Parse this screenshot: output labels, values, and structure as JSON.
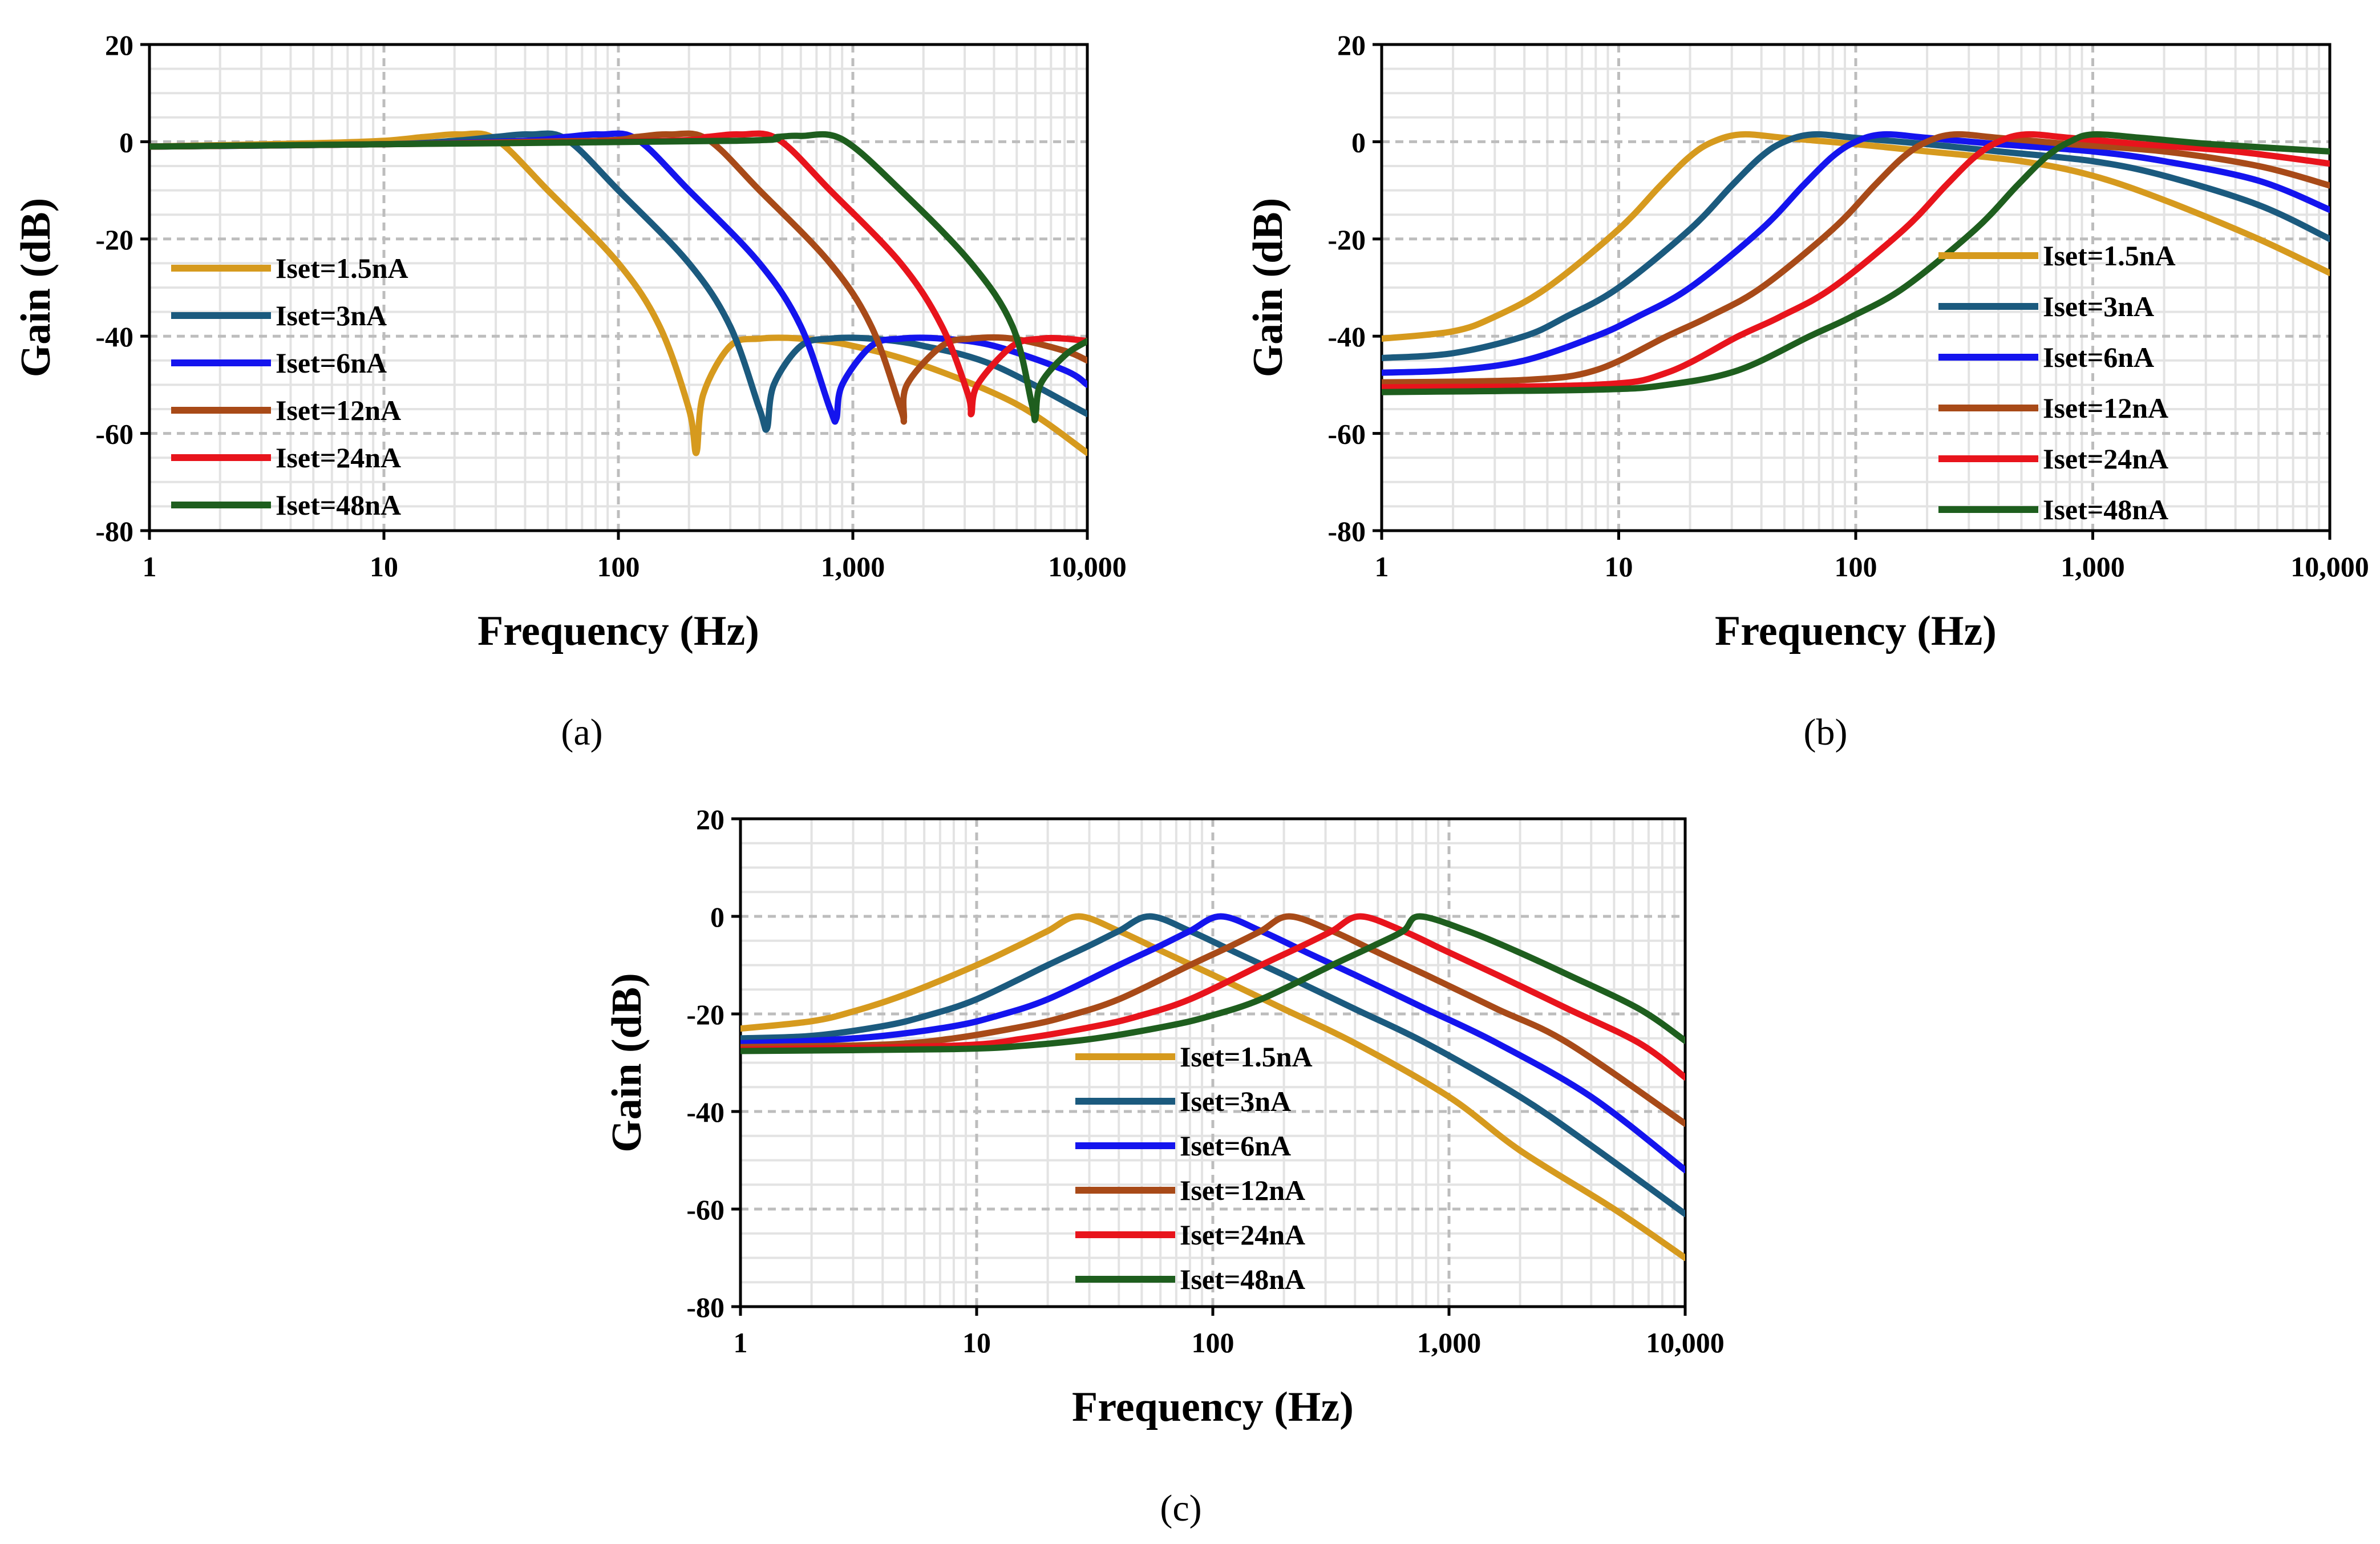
{
  "chart_data": [
    {
      "id": "a",
      "type": "line",
      "panel_label": "(a)",
      "xlabel": "Frequency (Hz)",
      "ylabel": "Gain (dB)",
      "xscale": "log",
      "xlim": [
        1,
        10000
      ],
      "ylim": [
        -80,
        20
      ],
      "xticks": [
        1,
        10,
        100,
        1000,
        10000
      ],
      "xtick_labels": [
        "1",
        "10",
        "100",
        "1,000",
        "10,000"
      ],
      "yticks": [
        -80,
        -60,
        -40,
        -20,
        0,
        20
      ],
      "ytick_labels": [
        "-80",
        "-60",
        "-40",
        "-20",
        "0",
        "20"
      ],
      "grid": true,
      "legend_position": "bottom-left",
      "series": [
        {
          "name": "Iset=1.5nA",
          "color": "#D69A1E",
          "x": [
            1,
            5,
            10,
            15,
            21,
            30,
            50,
            100,
            150,
            200,
            215,
            230,
            300,
            400,
            600,
            1000,
            2000,
            5000,
            10000
          ],
          "y": [
            -1,
            -0.3,
            0.2,
            1,
            1.5,
            0.5,
            -10,
            -25,
            -38,
            -55,
            -64,
            -52,
            -42,
            -40.5,
            -40.5,
            -42,
            -46,
            -54,
            -64
          ]
        },
        {
          "name": "Iset=3nA",
          "color": "#1B5A7E",
          "x": [
            1,
            10,
            20,
            30,
            42,
            60,
            100,
            200,
            300,
            400,
            430,
            460,
            600,
            800,
            1200,
            2000,
            4000,
            10000
          ],
          "y": [
            -1,
            -0.5,
            0.2,
            1,
            1.5,
            0.5,
            -10,
            -25,
            -38,
            -55,
            -59,
            -50,
            -42,
            -40.5,
            -40.5,
            -42,
            -46,
            -56
          ]
        },
        {
          "name": "Iset=6nA",
          "color": "#1414EE",
          "x": [
            1,
            10,
            40,
            60,
            84,
            120,
            200,
            400,
            600,
            800,
            850,
            900,
            1200,
            1600,
            2400,
            4000,
            8000,
            10000
          ],
          "y": [
            -1,
            -0.5,
            0.2,
            1,
            1.5,
            0.5,
            -10,
            -25,
            -38,
            -55,
            -57,
            -50,
            -42,
            -40.5,
            -40.5,
            -42,
            -47,
            -50
          ]
        },
        {
          "name": "Iset=12nA",
          "color": "#A84A18",
          "x": [
            1,
            10,
            80,
            120,
            165,
            240,
            400,
            800,
            1200,
            1600,
            1650,
            1700,
            2400,
            3200,
            4800,
            8000,
            10000
          ],
          "y": [
            -1,
            -0.5,
            0.2,
            1,
            1.5,
            0.5,
            -10,
            -25,
            -38,
            -55,
            -57,
            -50,
            -42,
            -40.5,
            -40.5,
            -43,
            -45
          ]
        },
        {
          "name": "Iset=24nA",
          "color": "#E8141C",
          "x": [
            1,
            10,
            160,
            240,
            330,
            480,
            800,
            1600,
            2400,
            3100,
            3200,
            3400,
            4800,
            6400,
            8000,
            10000
          ],
          "y": [
            -1,
            -0.5,
            0.2,
            1,
            1.5,
            0.5,
            -10,
            -25,
            -38,
            -52,
            -56,
            -50,
            -42,
            -40.5,
            -40.5,
            -41
          ]
        },
        {
          "name": "Iset=48nA",
          "color": "#1E5E1E",
          "x": [
            1,
            10,
            320,
            480,
            600,
            900,
            1600,
            3200,
            4800,
            5800,
            6000,
            6300,
            8000,
            10000
          ],
          "y": [
            -1,
            -0.5,
            0.2,
            1,
            1.2,
            0.5,
            -10,
            -25,
            -38,
            -54,
            -57,
            -50,
            -44,
            -41
          ]
        }
      ]
    },
    {
      "id": "b",
      "type": "line",
      "panel_label": "(b)",
      "xlabel": "Frequency (Hz)",
      "ylabel": "Gain (dB)",
      "xscale": "log",
      "xlim": [
        1,
        10000
      ],
      "ylim": [
        -80,
        20
      ],
      "xticks": [
        1,
        10,
        100,
        1000,
        10000
      ],
      "xtick_labels": [
        "1",
        "10",
        "100",
        "1,000",
        "10,000"
      ],
      "yticks": [
        -80,
        -60,
        -40,
        -20,
        0,
        20
      ],
      "ytick_labels": [
        "-80",
        "-60",
        "-40",
        "-20",
        "0",
        "20"
      ],
      "grid": true,
      "legend_position": "right",
      "series": [
        {
          "name": "Iset=1.5nA",
          "color": "#D69A1E",
          "x": [
            1,
            2,
            3,
            5,
            10,
            15,
            20,
            25,
            33,
            50,
            100,
            200,
            500,
            1000,
            2000,
            5000,
            10000
          ],
          "y": [
            -40.5,
            -39,
            -36,
            -30,
            -18,
            -9,
            -3,
            0,
            1.5,
            0.8,
            -0.5,
            -2,
            -4,
            -7,
            -12,
            -20,
            -27
          ]
        },
        {
          "name": "Iset=3nA",
          "color": "#1B5A7E",
          "x": [
            1,
            2,
            4,
            6,
            10,
            20,
            30,
            40,
            50,
            66,
            100,
            200,
            400,
            1000,
            2000,
            5000,
            10000
          ],
          "y": [
            -44.5,
            -43.5,
            -40,
            -36,
            -30,
            -18,
            -9,
            -3,
            0,
            1.5,
            0.8,
            -0.5,
            -2,
            -4,
            -7,
            -13,
            -20
          ]
        },
        {
          "name": "Iset=6nA",
          "color": "#1414EE",
          "x": [
            1,
            2,
            4,
            8,
            12,
            20,
            40,
            60,
            80,
            100,
            130,
            200,
            400,
            1000,
            2000,
            5000,
            10000
          ],
          "y": [
            -47.5,
            -47,
            -45,
            -40,
            -36,
            -30,
            -18,
            -9,
            -3,
            0,
            1.5,
            0.8,
            -0.5,
            -2,
            -4,
            -8,
            -14
          ]
        },
        {
          "name": "Iset=12nA",
          "color": "#A84A18",
          "x": [
            1,
            4,
            8,
            16,
            24,
            40,
            80,
            120,
            160,
            200,
            260,
            400,
            800,
            2000,
            5000,
            10000
          ],
          "y": [
            -49.5,
            -49,
            -47,
            -40,
            -36,
            -30,
            -18,
            -9,
            -3,
            0,
            1.5,
            0.8,
            -0.5,
            -2,
            -5,
            -9
          ]
        },
        {
          "name": "Iset=24nA",
          "color": "#E8141C",
          "x": [
            1,
            8,
            16,
            32,
            48,
            80,
            160,
            240,
            320,
            400,
            520,
            800,
            1600,
            4000,
            10000
          ],
          "y": [
            -50.5,
            -50,
            -47.5,
            -40,
            -36,
            -30,
            -18,
            -9,
            -3,
            0,
            1.5,
            0.8,
            -0.5,
            -2,
            -4.5
          ]
        },
        {
          "name": "Iset=48nA",
          "color": "#1E5E1E",
          "x": [
            1,
            8,
            16,
            32,
            64,
            96,
            160,
            320,
            480,
            640,
            800,
            1000,
            1600,
            3200,
            10000
          ],
          "y": [
            -51.5,
            -51,
            -50,
            -47,
            -40,
            -36,
            -30,
            -18,
            -9,
            -3,
            0,
            1.5,
            0.8,
            -0.5,
            -2
          ]
        }
      ]
    },
    {
      "id": "c",
      "type": "line",
      "panel_label": "(c)",
      "xlabel": "Frequency (Hz)",
      "ylabel": "Gain (dB)",
      "xscale": "log",
      "xlim": [
        1,
        10000
      ],
      "ylim": [
        -80,
        20
      ],
      "xticks": [
        1,
        10,
        100,
        1000,
        10000
      ],
      "xtick_labels": [
        "1",
        "10",
        "100",
        "1,000",
        "10,000"
      ],
      "yticks": [
        -80,
        -60,
        -40,
        -20,
        0,
        20
      ],
      "ytick_labels": [
        "-80",
        "-60",
        "-40",
        "-20",
        "0",
        "20"
      ],
      "grid": true,
      "legend_position": "bottom-center",
      "series": [
        {
          "name": "Iset=1.5nA",
          "color": "#D69A1E",
          "x": [
            1,
            2,
            3,
            5,
            10,
            15,
            20,
            27,
            40,
            60,
            100,
            200,
            400,
            1000,
            2000,
            5000,
            10000
          ],
          "y": [
            -23,
            -21.5,
            -19.5,
            -16,
            -10,
            -6,
            -3,
            0,
            -3,
            -7,
            -12,
            -19,
            -26,
            -37,
            -48,
            -60,
            -70
          ]
        },
        {
          "name": "Iset=3nA",
          "color": "#1B5A7E",
          "x": [
            1,
            2,
            4,
            6,
            10,
            20,
            30,
            40,
            54,
            80,
            120,
            200,
            400,
            800,
            2000,
            4000,
            10000
          ],
          "y": [
            -25,
            -24.5,
            -22.5,
            -20.5,
            -17,
            -10,
            -6,
            -3,
            0,
            -3,
            -7,
            -12,
            -19,
            -26,
            -37,
            -47,
            -61
          ]
        },
        {
          "name": "Iset=6nA",
          "color": "#1414EE",
          "x": [
            1,
            2,
            4,
            8,
            12,
            20,
            40,
            60,
            80,
            108,
            160,
            240,
            400,
            800,
            1600,
            4000,
            10000
          ],
          "y": [
            -26,
            -25.5,
            -24.5,
            -22.5,
            -20.5,
            -17,
            -10,
            -6,
            -3,
            0,
            -3,
            -7,
            -12,
            -19,
            -26,
            -37,
            -52
          ]
        },
        {
          "name": "Iset=12nA",
          "color": "#A84A18",
          "x": [
            1,
            4,
            8,
            16,
            24,
            40,
            80,
            120,
            160,
            210,
            320,
            480,
            800,
            1600,
            3200,
            10000
          ],
          "y": [
            -26.8,
            -26.3,
            -25,
            -22.5,
            -20.5,
            -17,
            -10,
            -6,
            -3,
            0,
            -3,
            -7,
            -12,
            -19,
            -26,
            -42.5
          ]
        },
        {
          "name": "Iset=24nA",
          "color": "#E8141C",
          "x": [
            1,
            8,
            16,
            32,
            48,
            80,
            160,
            240,
            320,
            420,
            640,
            960,
            1600,
            3200,
            6400,
            10000
          ],
          "y": [
            -27.3,
            -26.5,
            -25,
            -22.5,
            -20.5,
            -17,
            -10,
            -6,
            -3,
            0,
            -3,
            -7,
            -12,
            -19,
            -26,
            -33
          ]
        },
        {
          "name": "Iset=48nA",
          "color": "#1E5E1E",
          "x": [
            1,
            8,
            16,
            32,
            64,
            96,
            160,
            320,
            480,
            640,
            750,
            1200,
            1900,
            3200,
            6400,
            10000
          ],
          "y": [
            -27.6,
            -27.2,
            -26.5,
            -25,
            -22.5,
            -20.5,
            -17,
            -10,
            -6,
            -3,
            0,
            -3,
            -7,
            -12,
            -19,
            -25.5
          ]
        }
      ]
    }
  ]
}
